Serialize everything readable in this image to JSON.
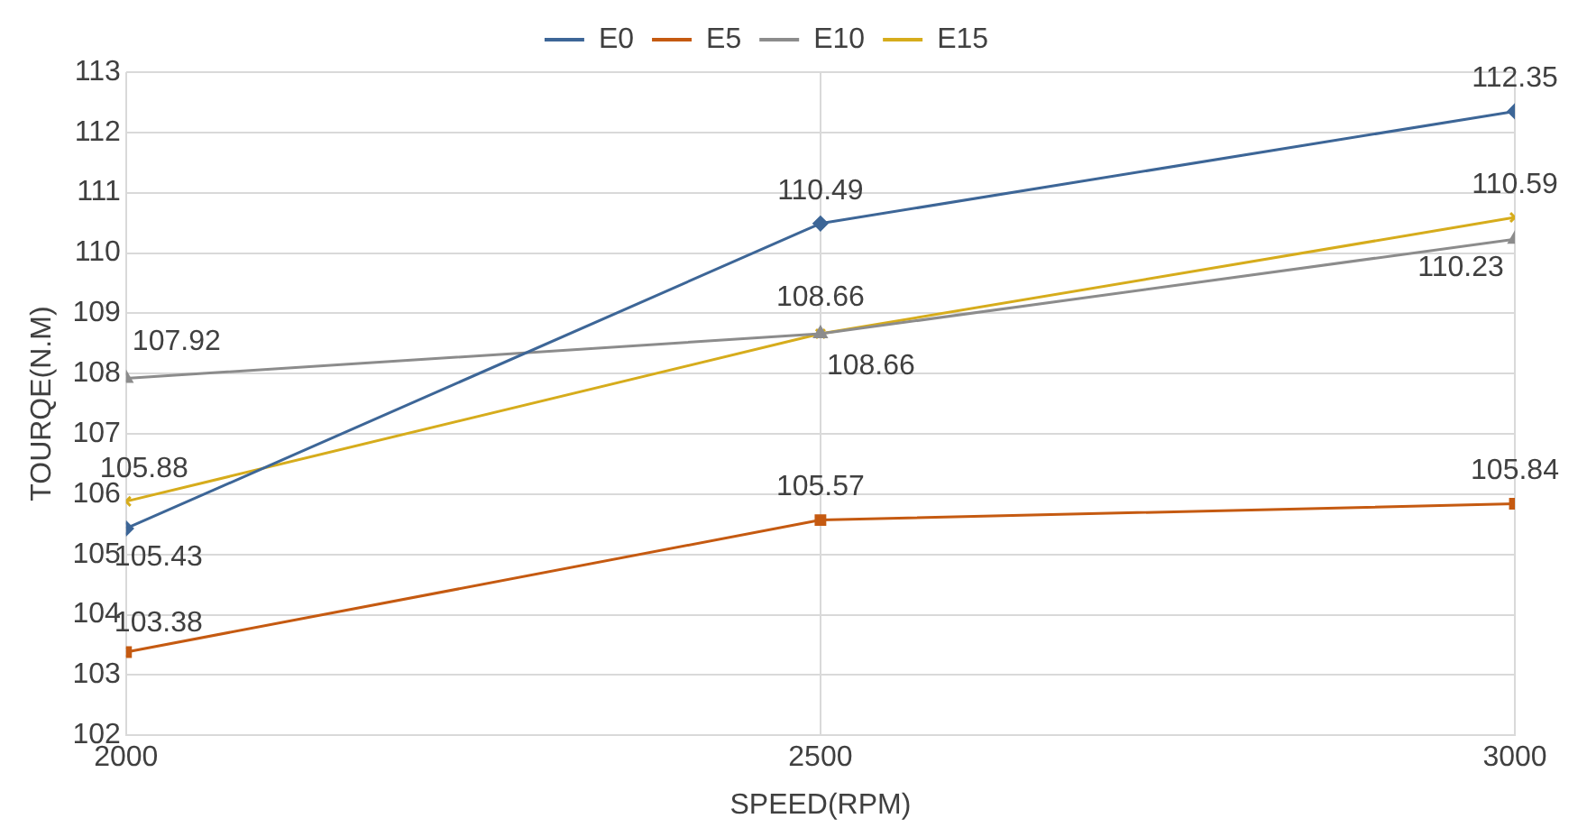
{
  "chart_data": {
    "type": "line",
    "xlabel": "SPEED(RPM)",
    "ylabel": "TOURQE(N.M)",
    "x": [
      2000,
      2500,
      3000
    ],
    "xlim": [
      2000,
      3000
    ],
    "xticks": [
      2000,
      2500,
      3000
    ],
    "ylim": [
      102,
      113
    ],
    "yticks": [
      102,
      103,
      104,
      105,
      106,
      107,
      108,
      109,
      110,
      111,
      112,
      113
    ],
    "grid": true,
    "legend": "top",
    "data_labels": true,
    "line_style": "solid",
    "series": [
      {
        "name": "E0",
        "color": "#3d6697",
        "marker": "diamond",
        "values": [
          105.43,
          110.49,
          112.35
        ]
      },
      {
        "name": "E5",
        "color": "#c55a11",
        "marker": "square",
        "values": [
          103.38,
          105.57,
          105.84
        ]
      },
      {
        "name": "E10",
        "color": "#8c8c8c",
        "marker": "triangle",
        "values": [
          107.92,
          108.66,
          110.23
        ]
      },
      {
        "name": "E15",
        "color": "#d6ac1c",
        "marker": "cross",
        "values": [
          105.88,
          108.66,
          110.59
        ]
      }
    ]
  }
}
